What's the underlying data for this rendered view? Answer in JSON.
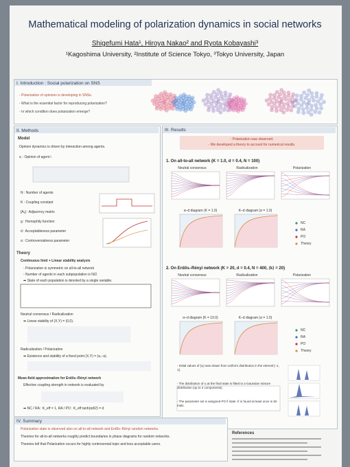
{
  "header": {
    "title": "Mathematical modeling of polarization dynamics in social networks",
    "authors": "Shigefumi Hata¹, Hiroya Nakao² and Ryota Kobayashi³",
    "affiliations": "¹Kagoshima University, ²Institute of Science Tokyo, ³Tokyo University, Japan"
  },
  "introduction": {
    "heading": "I. Introduction : Social polarization on SNS",
    "bullets": [
      "- Polarization of opinions is developing in SNSs.",
      "- What is the essential factor for reproducing polarization?",
      "- In which condition does polarization emerge?"
    ]
  },
  "methods": {
    "heading": "II. Methods",
    "model_heading": "Model",
    "model_text": "Opinion dynamics is driven by interaction among agents.",
    "opinion_def": "xᵢ : Opinion of agent i",
    "variables": [
      "N : Number of agents",
      "K : Coupling constant",
      "[Aᵢⱼ] : Adjacency matrix",
      "g : Homophily function",
      "d : Acceptableness parameter",
      "α : Controversialness parameter"
    ],
    "theory_heading": "Theory",
    "theory_subheading": "Continuous limit + Linear stability analysis",
    "theory_points": [
      "- Polarization is symmetric on all-to-all network",
      "- Number of agents in each subpopulation is N/2.",
      "➡ State of each population is denoted by a single variable."
    ],
    "nc_ra_heading": "Neutral consensus / Radicalization",
    "nc_ra_text": "➡ Linear stability of (X,Y) = (0,0).",
    "ra_po_heading": "Radicalization / Polarization",
    "ra_po_text": "➡ Existence and stability of a fixed point (X,Y) = (a,−a).",
    "mf_heading": "Mean-field approximation for Erdős–Rényi network",
    "mf_text": "Effective coupling strength in network is evaluated by",
    "mf_result": "➡ NC / RA : K_eff = 1,   RA / PO : K_eff tanh(αd/2) = d"
  },
  "results": {
    "heading": "III. Results",
    "highlights": [
      "- Polarization was observed.",
      "- We developed a theory to account for numerical results."
    ],
    "sections": [
      {
        "heading": "1. On all-to-all network (K = 1.0, d = 0.4, N = 100)",
        "panels": [
          "Neutral consensus",
          "Radicalization",
          "Polarization"
        ],
        "diagrams": [
          "α–d diagram (K = 1.0)",
          "K–d diagram (α = 1.0)"
        ]
      },
      {
        "heading": "2. On Erdős–Rényi network (K = 20, d = 0.4, N = 400, ⟨k⟩ = 20)",
        "panels": [
          "Neutral consensus",
          "Radicalization",
          "Polarization"
        ],
        "diagrams": [
          "α–d diagram (K = 10.0)",
          "K–d diagram (α = 1.0)"
        ]
      }
    ],
    "legend": [
      "NC",
      "RA",
      "PO",
      "Theory"
    ],
    "notes": [
      "- Initial values of {xᵢ} was drawn from uniform distribution in the interval [−1, 1].",
      "- The distribution of xᵢ at the final state is fitted to a Gaussian mixture distribution (up to 2 components).",
      "- The parameter set is assigned PO if state ③ is found at least once in 50 trials."
    ]
  },
  "summary": {
    "heading": "IV. Summary",
    "lines": [
      "Polarization state is observed also on all-to-all network and Erdős–Rényi random networks.",
      "Theories for all-to-all networks roughly predict boundaries in phase diagrams for random networks.",
      "Theories tell that Polarization occurs for highly controversial topic and less acceptable users."
    ]
  },
  "references": {
    "heading": "References"
  }
}
